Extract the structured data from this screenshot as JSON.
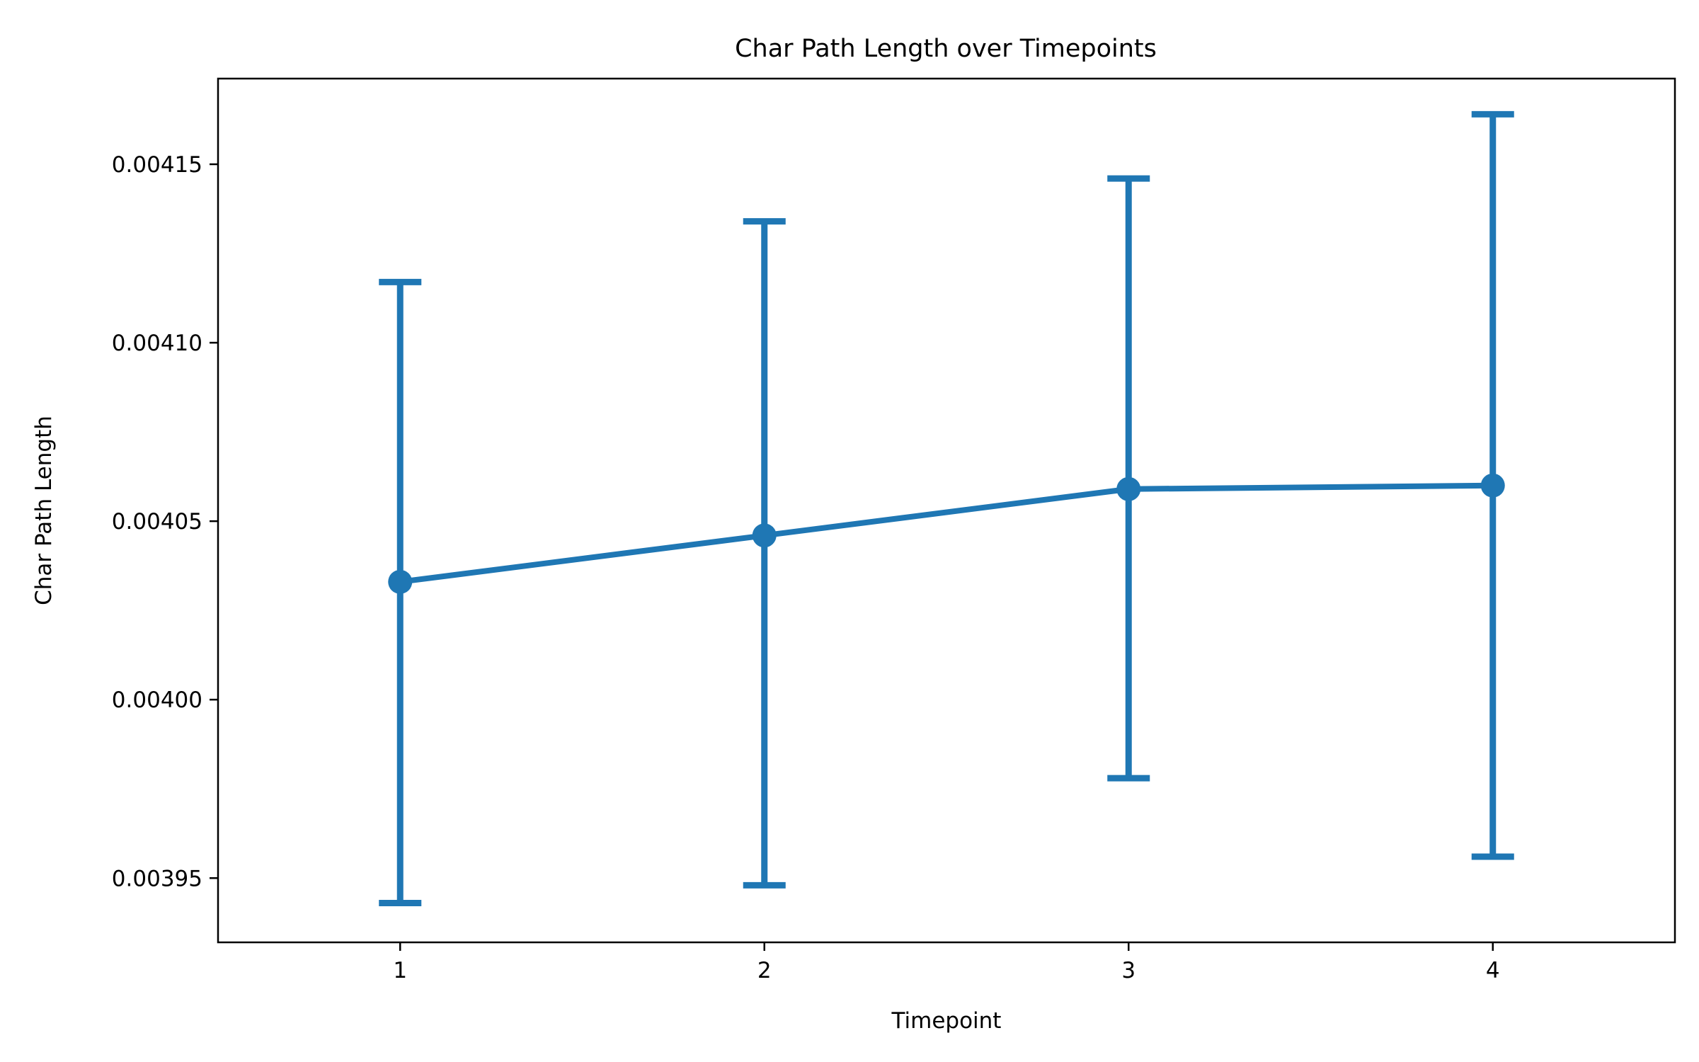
{
  "chart_data": {
    "type": "line",
    "title": "Char Path Length over Timepoints",
    "xlabel": "Timepoint",
    "ylabel": "Char Path Length",
    "x": [
      1,
      2,
      3,
      4
    ],
    "x_tick_labels": [
      "1",
      "2",
      "3",
      "4"
    ],
    "xlim": [
      0.5,
      4.5
    ],
    "ylim": [
      0.003932,
      0.004174
    ],
    "y_ticks": [
      0.00395,
      0.004,
      0.00405,
      0.0041,
      0.00415
    ],
    "y_tick_labels": [
      "0.00395",
      "0.00400",
      "0.00405",
      "0.00410",
      "0.00415"
    ],
    "grid": false,
    "series": [
      {
        "values": [
          0.004033,
          0.004046,
          0.004059,
          0.00406
        ],
        "error_low": [
          0.003943,
          0.003948,
          0.003978,
          0.003956
        ],
        "error_high": [
          0.004117,
          0.004134,
          0.004146,
          0.004164
        ],
        "color": "#1f77b4"
      }
    ]
  }
}
